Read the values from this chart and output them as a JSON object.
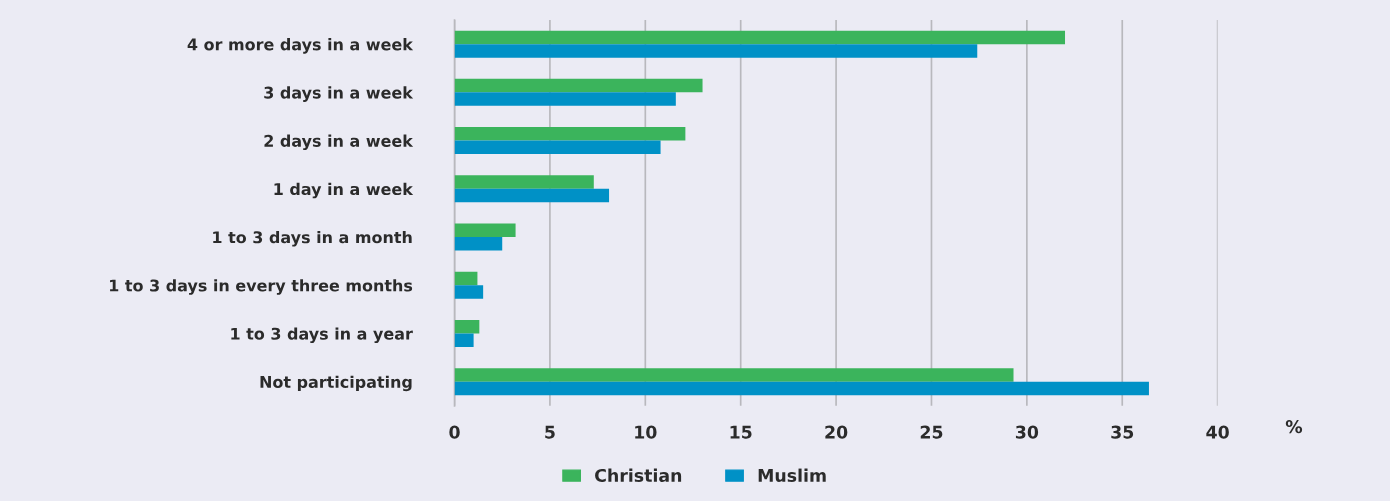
{
  "chart_data": {
    "type": "bar",
    "orientation": "horizontal",
    "categories": [
      "4 or more days in a week",
      "3 days in a week",
      "2 days in a week",
      "1 day in a week",
      "1 to 3 days in a month",
      "1 to 3 days in every three months",
      "1 to 3 days in a year",
      "Not participating"
    ],
    "series": [
      {
        "name": "Christian",
        "color": "#3bb45c",
        "values": [
          32.0,
          13.0,
          12.1,
          7.3,
          3.2,
          1.2,
          1.3,
          29.3
        ]
      },
      {
        "name": "Muslim",
        "color": "#0091c6",
        "values": [
          27.4,
          11.6,
          10.8,
          8.1,
          2.5,
          1.5,
          1.0,
          36.4
        ]
      }
    ],
    "xlabel": "%",
    "xlim": [
      0,
      40
    ],
    "xticks": [
      0,
      5,
      10,
      15,
      20,
      25,
      30,
      35,
      40
    ],
    "grid": "x",
    "legend": "bottom"
  }
}
